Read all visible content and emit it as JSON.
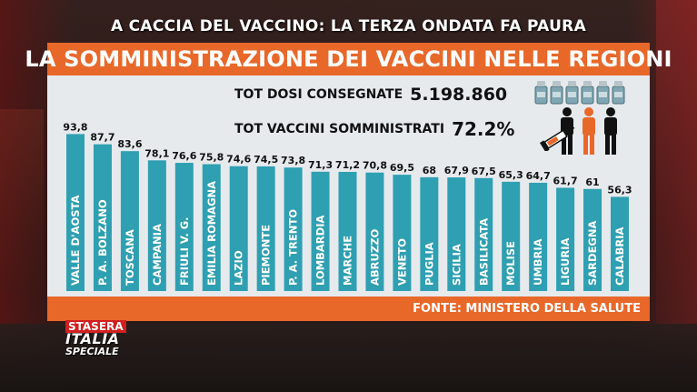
{
  "header": {
    "subtitle": "A CACCIA DEL VACCINO: LA TERZA ONDATA FA PAURA",
    "title": "LA SOMMINISTRAZIONE DEI VACCINI NELLE REGIONI"
  },
  "stats": {
    "doses_label": "TOT DOSI CONSEGNATE",
    "doses_value": "5.198.860",
    "administered_label": "TOT VACCINI SOMMINISTRATI",
    "administered_value": "72.2%"
  },
  "source": "FONTE: MINISTERO DELLA SALUTE",
  "logo": {
    "line1": "STASERA",
    "line2": "ITALIA",
    "line3": "SPECIALE"
  },
  "colors": {
    "bar": "#2f9fb2",
    "accent": "#e8682a",
    "panel": "#e6eaed"
  },
  "icons": [
    "vaccine-vials-icon",
    "people-icon",
    "syringe-icon"
  ],
  "chart_data": {
    "type": "bar",
    "categories": [
      "VALLE D'AOSTA",
      "P. A. BOLZANO",
      "TOSCANA",
      "CAMPANIA",
      "FRIULI V. G.",
      "EMILIA ROMAGNA",
      "LAZIO",
      "PIEMONTE",
      "P. A. TRENTO",
      "LOMBARDIA",
      "MARCHE",
      "ABRUZZO",
      "VENETO",
      "PUGLIA",
      "SICILIA",
      "BASILICATA",
      "MOLISE",
      "UMBRIA",
      "LIGURIA",
      "SARDEGNA",
      "CALABRIA"
    ],
    "values": [
      93.8,
      87.7,
      83.6,
      78.1,
      76.6,
      75.8,
      74.6,
      74.5,
      73.8,
      71.3,
      71.2,
      70.8,
      69.5,
      68,
      67.9,
      67.5,
      65.3,
      64.7,
      61.7,
      61,
      56.3
    ],
    "value_labels": [
      "93,8",
      "87,7",
      "83,6",
      "78,1",
      "76,6",
      "75,8",
      "74,6",
      "74,5",
      "73,8",
      "71,3",
      "71,2",
      "70,8",
      "69,5",
      "68",
      "67,9",
      "67,5",
      "65,3",
      "64,7",
      "61,7",
      "61",
      "56,3"
    ],
    "grid": false,
    "legend": "none"
  }
}
